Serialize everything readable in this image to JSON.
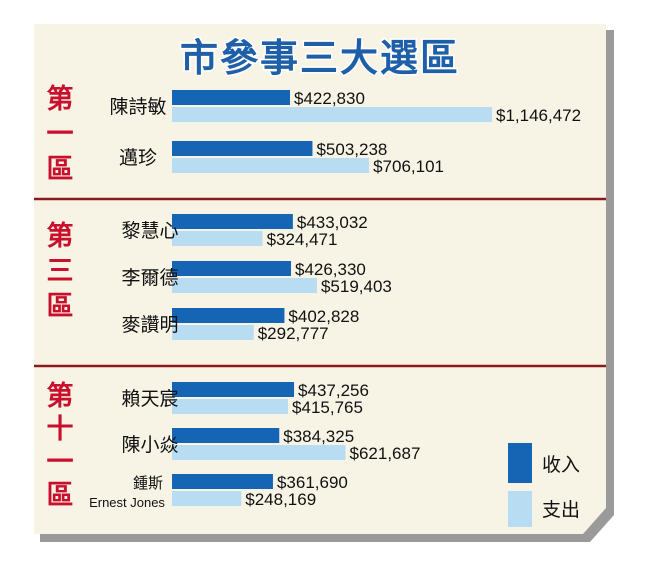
{
  "chart_data": {
    "type": "bar",
    "orientation": "horizontal",
    "title": "市參事三大選區",
    "xlim": [
      0,
      1200000
    ],
    "colors": {
      "income": "#1565b4",
      "expense": "#b8dcf2",
      "district": "#c8102e",
      "divider": "#8b1a1a",
      "panel": "#f7f4e6",
      "title": "#1f5fa8"
    },
    "legend": {
      "position": "bottom-right",
      "entries": [
        {
          "key": "income",
          "label": "收入"
        },
        {
          "key": "expense",
          "label": "支出"
        }
      ]
    },
    "districts": [
      {
        "label": [
          "第",
          "一",
          "區"
        ],
        "candidates": [
          {
            "name": [
              "陳詩敏"
            ],
            "income": 422830,
            "expense": 1146472,
            "income_label": "$422,830",
            "expense_label": "$1,146,472"
          },
          {
            "name": [
              "邁珍"
            ],
            "income": 503238,
            "expense": 706101,
            "income_label": "$503,238",
            "expense_label": "$706,101"
          }
        ]
      },
      {
        "label": [
          "第",
          "三",
          "區"
        ],
        "candidates": [
          {
            "name": [
              "黎慧心"
            ],
            "income": 433032,
            "expense": 324471,
            "income_label": "$433,032",
            "expense_label": "$324,471"
          },
          {
            "name": [
              "李爾德"
            ],
            "income": 426330,
            "expense": 519403,
            "income_label": "$426,330",
            "expense_label": "$519,403"
          },
          {
            "name": [
              "麥讚明"
            ],
            "income": 402828,
            "expense": 292777,
            "income_label": "$402,828",
            "expense_label": "$292,777"
          }
        ]
      },
      {
        "label": [
          "第",
          "十",
          "一",
          "區"
        ],
        "candidates": [
          {
            "name": [
              "賴天宸"
            ],
            "income": 437256,
            "expense": 415765,
            "income_label": "$437,256",
            "expense_label": "$415,765"
          },
          {
            "name": [
              "陳小焱"
            ],
            "income": 384325,
            "expense": 621687,
            "income_label": "$384,325",
            "expense_label": "$621,687"
          },
          {
            "name": [
              "鍾斯",
              "Ernest Jones"
            ],
            "income": 361690,
            "expense": 248169,
            "income_label": "$361,690",
            "expense_label": "$248,169"
          }
        ]
      }
    ]
  }
}
